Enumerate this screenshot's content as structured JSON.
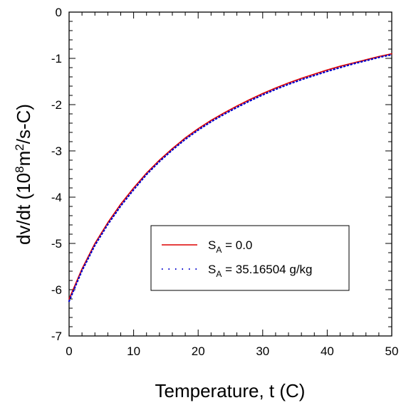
{
  "chart_data": {
    "type": "line",
    "xlabel": "Temperature, t (C)",
    "ylabel": {
      "prefix": "dv/dt (10",
      "exp1": "8",
      "mid": "m",
      "exp2": "2",
      "suffix": "/s-C)"
    },
    "xlim": [
      0,
      50
    ],
    "ylim": [
      -7,
      0
    ],
    "x_ticks": [
      0,
      10,
      20,
      30,
      40,
      50
    ],
    "y_ticks": [
      0,
      -1,
      -2,
      -3,
      -4,
      -5,
      -6,
      -7
    ],
    "x_tick_labels": [
      "0",
      "10",
      "20",
      "30",
      "40",
      "50"
    ],
    "y_tick_labels": [
      "0",
      "-1",
      "-2",
      "-3",
      "-4",
      "-5",
      "-6",
      "-7"
    ],
    "grid": false,
    "legend_position": "lower-right",
    "x": [
      0,
      2,
      4,
      6,
      8,
      10,
      12,
      14,
      16,
      18,
      20,
      22,
      24,
      26,
      28,
      30,
      32,
      34,
      36,
      38,
      40,
      42,
      44,
      46,
      48,
      50
    ],
    "series": [
      {
        "name": "S_A = 0.0",
        "legend": {
          "s": "S",
          "sub": "A",
          "rest": " = 0.0"
        },
        "color": "#dd0000",
        "dash": "solid",
        "values": [
          -6.2,
          -5.55,
          -5.0,
          -4.55,
          -4.15,
          -3.8,
          -3.48,
          -3.2,
          -2.95,
          -2.72,
          -2.52,
          -2.34,
          -2.18,
          -2.03,
          -1.89,
          -1.76,
          -1.64,
          -1.53,
          -1.43,
          -1.34,
          -1.25,
          -1.17,
          -1.1,
          -1.03,
          -0.96,
          -0.9
        ]
      },
      {
        "name": "S_A = 35.16504 g/kg",
        "legend": {
          "s": "S",
          "sub": "A",
          "rest": " = 35.16504 g/kg"
        },
        "color": "#0000cc",
        "dash": "dotted",
        "values": [
          -6.25,
          -5.59,
          -5.04,
          -4.59,
          -4.19,
          -3.84,
          -3.51,
          -3.23,
          -2.98,
          -2.75,
          -2.55,
          -2.37,
          -2.21,
          -2.06,
          -1.92,
          -1.79,
          -1.67,
          -1.56,
          -1.46,
          -1.37,
          -1.28,
          -1.2,
          -1.12,
          -1.05,
          -0.98,
          -0.92
        ]
      }
    ]
  }
}
